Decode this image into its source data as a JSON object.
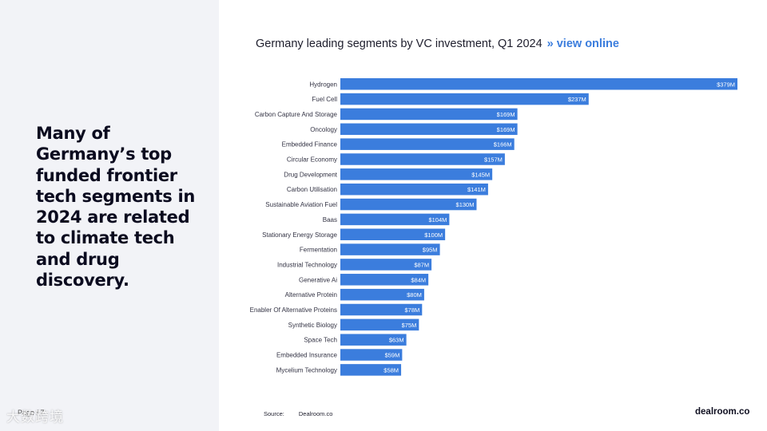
{
  "headline": "Many of Germany’s top funded frontier tech segments in 2024 are related to climate tech and drug discovery.",
  "page_label": "Page / 7",
  "watermark": "大数跨境",
  "chart_title": {
    "text": "Germany leading segments by VC investment, Q1 2024",
    "separator": "»",
    "link": "view online"
  },
  "source": {
    "label": "Source:",
    "value": "Dealroom.co"
  },
  "brand": "dealroom.co",
  "colors": {
    "bar": "#3b7ddd",
    "panel": "#f2f3f7",
    "accent": "#3b7ddd"
  },
  "chart_data": {
    "type": "bar",
    "orientation": "horizontal",
    "title": "Germany leading segments by VC investment, Q1 2024",
    "unit": "$M",
    "categories": [
      "Hydrogen",
      "Fuel Cell",
      "Carbon Capture And Storage",
      "Oncology",
      "Embedded Finance",
      "Circular Economy",
      "Drug Development",
      "Carbon Utilisation",
      "Sustainable Aviation Fuel",
      "Baas",
      "Stationary Energy Storage",
      "Fermentation",
      "Industrial Technology",
      "Generative Ai",
      "Alternative Protein",
      "Enabler Of Alternative Proteins",
      "Synthetic Biology",
      "Space Tech",
      "Embedded Insurance",
      "Mycelium Technology"
    ],
    "values": [
      379,
      237,
      169,
      169,
      166,
      157,
      145,
      141,
      130,
      104,
      100,
      95,
      87,
      84,
      80,
      78,
      75,
      63,
      59,
      58
    ],
    "labels": [
      "$379M",
      "$237M",
      "$169M",
      "$169M",
      "$166M",
      "$157M",
      "$145M",
      "$141M",
      "$130M",
      "$104M",
      "$100M",
      "$95M",
      "$87M",
      "$84M",
      "$80M",
      "$78M",
      "$75M",
      "$63M",
      "$59M",
      "$58M"
    ],
    "xlim": [
      0,
      379
    ],
    "grid": false,
    "legend": "none"
  }
}
